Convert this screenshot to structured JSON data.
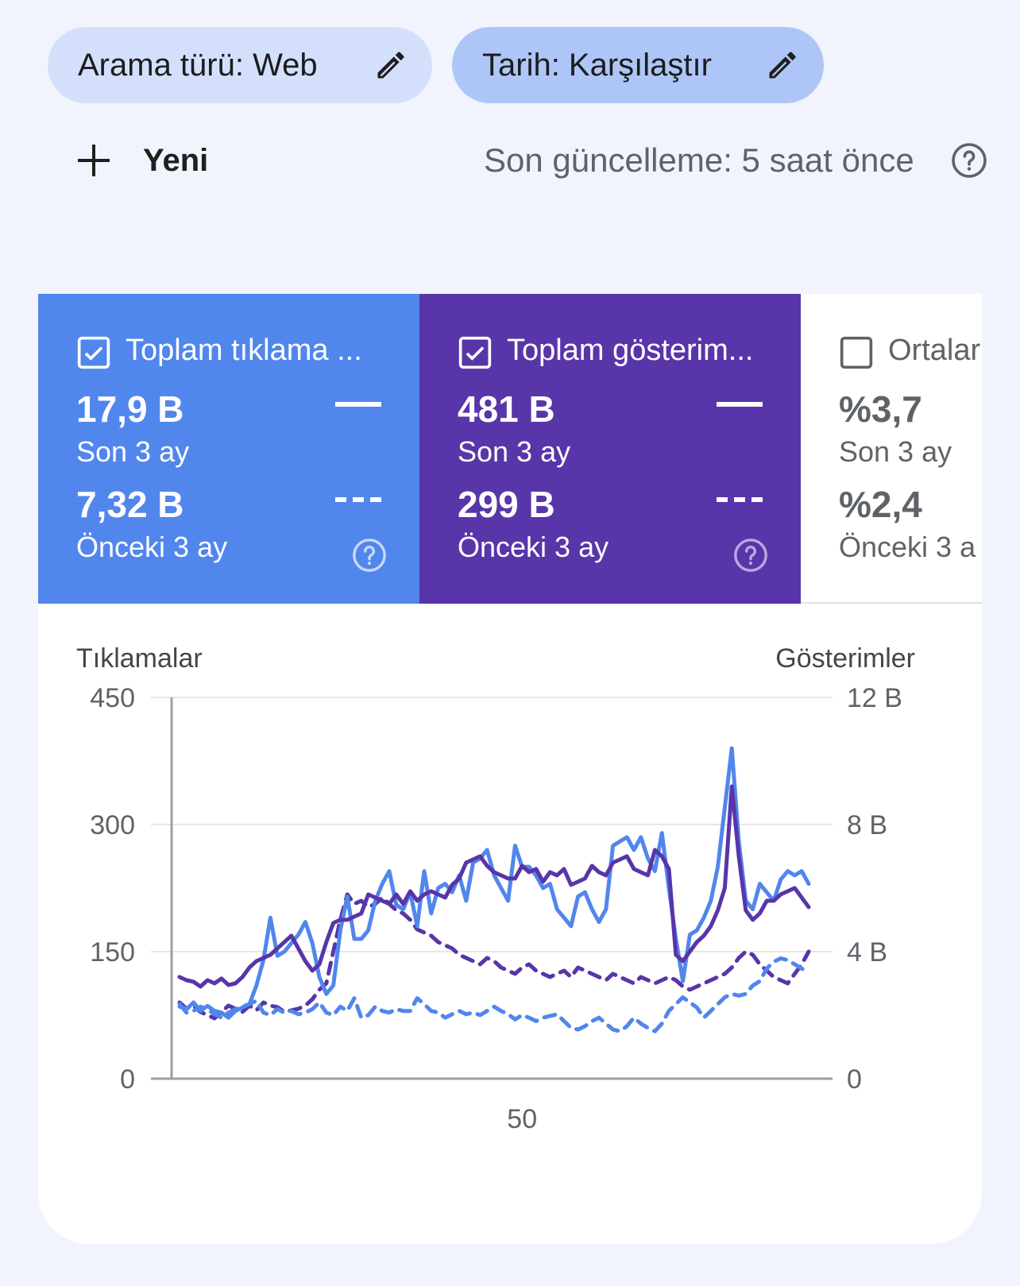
{
  "filters": {
    "search_type": "Arama türü: Web",
    "date": "Tarih: Karşılaştır"
  },
  "actions": {
    "new_label": "Yeni"
  },
  "status": {
    "last_update": "Son güncelleme: 5 saat önce"
  },
  "cards": [
    {
      "title": "Toplam tıklama ...",
      "checked": true,
      "current_value": "17,9 B",
      "current_period": "Son 3 ay",
      "previous_value": "7,32 B",
      "previous_period": "Önceki 3 ay",
      "color": "#5186ec"
    },
    {
      "title": "Toplam gösterim...",
      "checked": true,
      "current_value": "481 B",
      "current_period": "Son 3 ay",
      "previous_value": "299 B",
      "previous_period": "Önceki 3 ay",
      "color": "#5835a9"
    },
    {
      "title": "Ortalar",
      "checked": false,
      "current_value": "%3,7",
      "current_period": "Son 3 ay",
      "previous_value": "%2,4",
      "previous_period": "Önceki 3 a",
      "color": "#ffffff"
    }
  ],
  "chart_data": {
    "type": "line",
    "ylabel_left": "Tıklamalar",
    "ylabel_right": "Gösterimler",
    "y_left_ticks": [
      "0",
      "150",
      "300",
      "450"
    ],
    "y_right_ticks": [
      "0",
      "4 B",
      "8 B",
      "12 B"
    ],
    "x_ticks": [
      "50"
    ],
    "y_left_range": [
      0,
      450
    ],
    "y_right_range": [
      0,
      12000
    ],
    "x_range": [
      1,
      91
    ],
    "series": [
      {
        "axis": "left",
        "style": "solid",
        "color": "#5186ec",
        "values": [
          85,
          82,
          90,
          80,
          86,
          80,
          78,
          72,
          80,
          84,
          88,
          110,
          140,
          190,
          145,
          150,
          160,
          170,
          185,
          160,
          120,
          100,
          110,
          175,
          215,
          165,
          165,
          175,
          210,
          230,
          245,
          205,
          200,
          220,
          180,
          245,
          195,
          225,
          230,
          220,
          240,
          210,
          255,
          260,
          270,
          240,
          225,
          210,
          275,
          250,
          250,
          240,
          225,
          230,
          200,
          190,
          180,
          215,
          220,
          200,
          185,
          200,
          275,
          280,
          285,
          270,
          285,
          260,
          245,
          290,
          225,
          165,
          115,
          170,
          175,
          190,
          210,
          250,
          320,
          390,
          280,
          210,
          200,
          230,
          220,
          210,
          235,
          245,
          240,
          245,
          230
        ]
      },
      {
        "axis": "left",
        "style": "dashed",
        "color": "#5186ec",
        "values": [
          88,
          78,
          80,
          85,
          82,
          76,
          72,
          78,
          82,
          85,
          88,
          92,
          78,
          75,
          82,
          78,
          80,
          76,
          78,
          82,
          90,
          78,
          75,
          85,
          80,
          95,
          72,
          75,
          85,
          80,
          78,
          82,
          80,
          80,
          95,
          88,
          80,
          78,
          72,
          76,
          80,
          76,
          78,
          75,
          80,
          85,
          80,
          76,
          70,
          75,
          72,
          68,
          72,
          74,
          76,
          68,
          60,
          58,
          62,
          68,
          72,
          65,
          58,
          56,
          62,
          72,
          65,
          60,
          56,
          65,
          80,
          88,
          96,
          90,
          84,
          72,
          80,
          88,
          96,
          100,
          98,
          100,
          110,
          115,
          130,
          138,
          142,
          140,
          135,
          130,
          125
        ]
      },
      {
        "axis": "right",
        "style": "solid",
        "color": "#5835a9",
        "values": [
          3200,
          3100,
          3050,
          2900,
          3100,
          3000,
          3150,
          2950,
          3000,
          3200,
          3500,
          3700,
          3800,
          3900,
          4100,
          4300,
          4500,
          4100,
          3700,
          3400,
          3600,
          4300,
          4900,
          5000,
          5000,
          5100,
          5200,
          5800,
          5700,
          5600,
          5500,
          5800,
          5500,
          5900,
          5600,
          5800,
          5900,
          5800,
          5700,
          6100,
          6300,
          6800,
          6900,
          7000,
          6700,
          6500,
          6400,
          6300,
          6300,
          6700,
          6500,
          6600,
          6200,
          6500,
          6400,
          6600,
          6100,
          6200,
          6300,
          6700,
          6500,
          6400,
          6800,
          6900,
          7000,
          6600,
          6500,
          6400,
          7200,
          7000,
          6600,
          3900,
          3700,
          4000,
          4300,
          4500,
          4800,
          5300,
          6000,
          9200,
          7000,
          5300,
          5000,
          5200,
          5600,
          5600,
          5800,
          5900,
          6000,
          5700,
          5400
        ]
      },
      {
        "axis": "right",
        "style": "dashed",
        "color": "#5835a9",
        "values": [
          2400,
          2200,
          2300,
          2100,
          2000,
          1900,
          2100,
          2300,
          2200,
          2100,
          2300,
          2150,
          2400,
          2300,
          2250,
          2100,
          2150,
          2200,
          2300,
          2500,
          2800,
          3000,
          4000,
          5000,
          5800,
          5500,
          5600,
          5400,
          5500,
          5700,
          5500,
          5300,
          5200,
          5000,
          4700,
          4600,
          4500,
          4300,
          4200,
          4100,
          3900,
          3800,
          3700,
          3600,
          3800,
          3700,
          3500,
          3400,
          3300,
          3500,
          3600,
          3400,
          3300,
          3200,
          3300,
          3400,
          3200,
          3500,
          3400,
          3300,
          3200,
          3100,
          3300,
          3200,
          3100,
          3000,
          3200,
          3100,
          3000,
          3100,
          3200,
          3100,
          2900,
          2800,
          2900,
          3000,
          3100,
          3200,
          3300,
          3500,
          3800,
          4000,
          3900,
          3600,
          3400,
          3200,
          3100,
          3000,
          3300,
          3600,
          4000
        ]
      }
    ]
  }
}
